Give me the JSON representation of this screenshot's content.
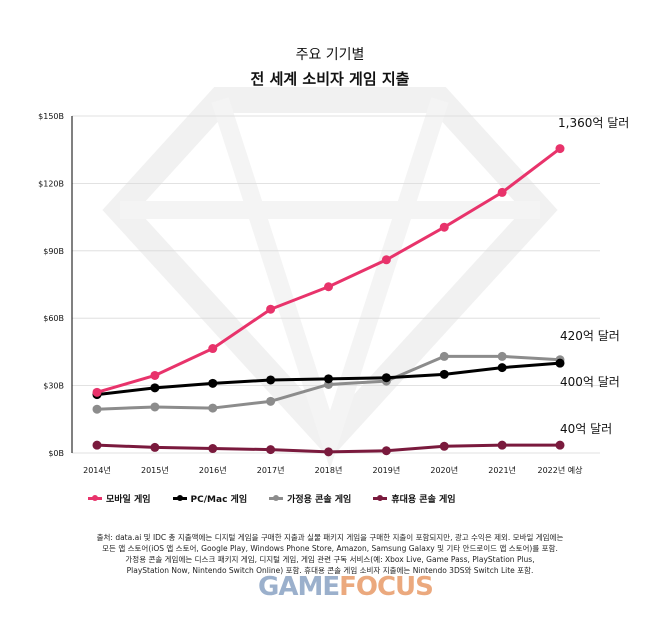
{
  "chart_data": {
    "type": "line",
    "title": "주요 기기별",
    "subtitle": "전 세계 소비자 게임 지출",
    "categories": [
      "2014년",
      "2015년",
      "2016년",
      "2017년",
      "2018년",
      "2019년",
      "2020년",
      "2021년",
      "2022년 예상"
    ],
    "y_ticks": [
      "$0B",
      "$30B",
      "$60B",
      "$90B",
      "$120B",
      "$150B"
    ],
    "ylim": [
      0,
      150
    ],
    "grid": "horizontal",
    "legend_position": "bottom-left",
    "series": [
      {
        "name": "모바일 게임",
        "color": "#e8336b",
        "values": [
          27,
          34.5,
          46.5,
          64,
          74,
          86,
          100.5,
          116,
          135.5
        ]
      },
      {
        "name": "PC/Mac 게임",
        "color": "#000000",
        "values": [
          26,
          29,
          31,
          32.5,
          33,
          33.5,
          35,
          38,
          40
        ]
      },
      {
        "name": "가정용 콘솔 게임",
        "color": "#8c8c8c",
        "values": [
          19.5,
          20.5,
          20,
          23,
          30.5,
          32,
          43,
          43,
          41.5
        ]
      },
      {
        "name": "휴대용 콘솔 게임",
        "color": "#7a1a3d",
        "values": [
          3.5,
          2.5,
          2,
          1.5,
          0.5,
          1,
          3,
          3.5,
          3.5
        ]
      }
    ],
    "annotations": [
      {
        "text": "1,360억 달러",
        "series": 0
      },
      {
        "text": "420억 달러",
        "series": 2
      },
      {
        "text": "400억 달러",
        "series": 1
      },
      {
        "text": "40억 달러",
        "series": 3
      }
    ]
  },
  "footnote": {
    "line1": "출처: data.ai 및 IDC 총 지출액에는 디지털 게임을 구매한 지출과 실물 패키지 게임을 구매한 지출이 포함되지만, 광고 수익은 제외. 모바일 게임에는",
    "line2": "모든 앱 스토어(iOS 앱 스토어, Google Play, Windows Phone Store, Amazon, Samsung Galaxy 및 기타 안드로이드 앱 스토어)를 포함.",
    "line3": "가정용 콘솔 게임에는 디스크 패키지 게임, 디지털 게임, 게임 관련 구독 서비스(예: Xbox Live, Game Pass, PlayStation Plus,",
    "line4": "PlayStation Now, Nintendo Switch Online) 포함. 휴대용 콘솔 게임 소비자 지출에는 Nintendo 3DS와 Switch Lite 포함."
  },
  "watermark": {
    "part1": "GAME",
    "part2": "FOCUS"
  }
}
